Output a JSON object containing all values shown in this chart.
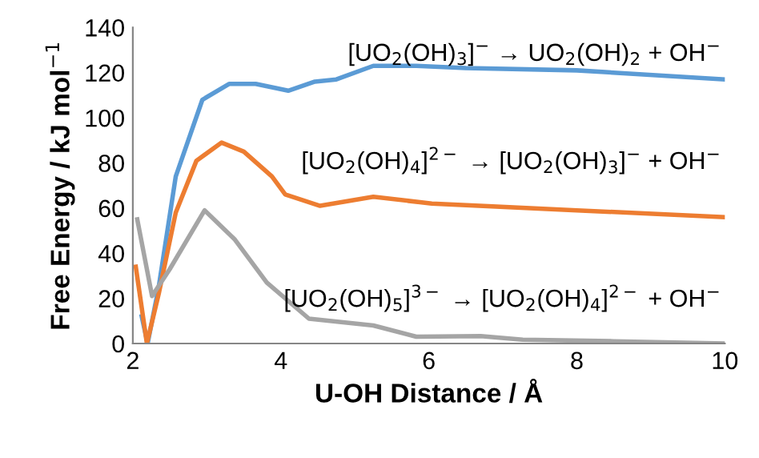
{
  "chart_data": {
    "type": "line",
    "xlabel": "U-OH Distance / Å",
    "ylabel": "Free Energy / kJ mol$^{−1}$",
    "xlim": [
      2,
      10
    ],
    "ylim": [
      0,
      140
    ],
    "xticks": [
      2,
      4,
      6,
      8,
      10
    ],
    "yticks": [
      0,
      20,
      40,
      60,
      80,
      100,
      120,
      140
    ],
    "grid": false,
    "legend": false,
    "marker": "none",
    "line_style": "solid",
    "series": [
      {
        "name": "[UO$_{2}$(OH)$_{3}$]$^{−}$ → UO$_{2}$(OH)$_{2}$ + OH$^{−}$",
        "color": "#5b9bd5",
        "x": [
          2.12,
          2.2,
          2.35,
          2.58,
          2.94,
          3.3,
          3.66,
          4.1,
          4.46,
          4.75,
          5.25,
          5.83,
          6.5,
          8,
          10
        ],
        "values": [
          12,
          0,
          25,
          74,
          108,
          115,
          115,
          112,
          116,
          117,
          123,
          123,
          122,
          121,
          117
        ]
      },
      {
        "name": "[UO$_{2}$(OH)$_{4}$]$^{2−}$ → [UO$_{2}$(OH)$_{3}$]$^{−}$ + OH$^{−}$",
        "color": "#ed7d31",
        "x": [
          2.04,
          2.19,
          2.35,
          2.58,
          2.86,
          3.2,
          3.5,
          3.88,
          4.06,
          4.53,
          5.25,
          6.04,
          8,
          10
        ],
        "values": [
          34,
          0,
          22,
          58,
          81,
          89,
          85,
          74,
          66,
          61,
          65,
          62,
          59,
          56
        ]
      },
      {
        "name": "[UO$_{2}$(OH)$_{5}$]$^{3−}$ → [UO$_{2}$(OH)$_{4}$]$^{2−}$ + OH$^{−}$",
        "color": "#a5a5a5",
        "x": [
          2.06,
          2.26,
          2.5,
          2.97,
          3.38,
          3.81,
          4.38,
          5.25,
          5.83,
          6.7,
          7.27,
          8.5,
          10
        ],
        "values": [
          55,
          21,
          33,
          59,
          46,
          27,
          11,
          8,
          3,
          3.3,
          1.7,
          1,
          0
        ]
      }
    ]
  }
}
